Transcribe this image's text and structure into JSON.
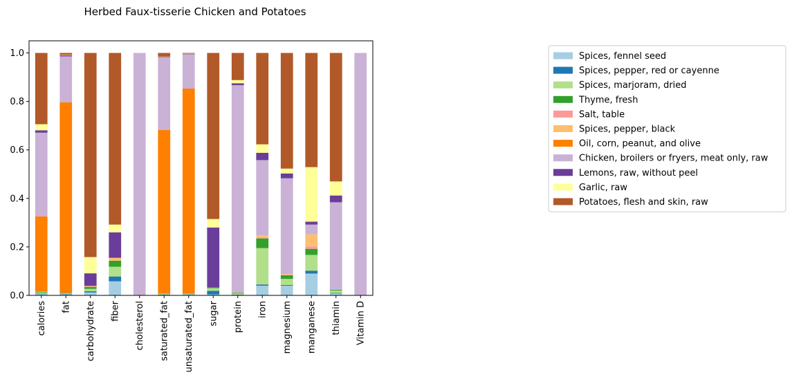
{
  "chart_data": {
    "type": "bar",
    "stacked": true,
    "title": "Herbed Faux-tisserie Chicken and Potatoes",
    "xlabel": "",
    "ylabel": "",
    "ylim": [
      0,
      1.05
    ],
    "yticks": [
      "0.0",
      "0.2",
      "0.4",
      "0.6",
      "0.8",
      "1.0"
    ],
    "grid": false,
    "legend_position": "right",
    "categories": [
      "calories",
      "fat",
      "carbohydrate",
      "fiber",
      "cholesterol",
      "saturated_fat",
      "unsaturated_fat",
      "sugar",
      "protein",
      "iron",
      "magnesium",
      "manganese",
      "thiamin",
      "Vitamin D"
    ],
    "series": [
      {
        "name": "Spices, fennel seed",
        "color": "#a6cee3",
        "values": [
          0.005,
          0.003,
          0.012,
          0.058,
          0,
          0.002,
          0.003,
          0.004,
          0.002,
          0.04,
          0.04,
          0.09,
          0.008,
          0
        ]
      },
      {
        "name": "Spices, pepper, red or cayenne",
        "color": "#1f78b4",
        "values": [
          0.002,
          0.002,
          0.005,
          0.02,
          0,
          0.001,
          0.001,
          0.015,
          0.001,
          0.005,
          0.003,
          0.012,
          0.002,
          0
        ]
      },
      {
        "name": "Spices, marjoram, dried",
        "color": "#b2df8a",
        "values": [
          0.005,
          0.003,
          0.01,
          0.04,
          0,
          0.002,
          0.002,
          0.01,
          0.005,
          0.15,
          0.025,
          0.065,
          0.01,
          0
        ]
      },
      {
        "name": "Thyme, fresh",
        "color": "#33a02c",
        "values": [
          0.003,
          0.002,
          0.008,
          0.025,
          0,
          0.001,
          0.001,
          0.002,
          0.003,
          0.04,
          0.015,
          0.025,
          0.003,
          0
        ]
      },
      {
        "name": "Salt, table",
        "color": "#fb9a99",
        "values": [
          0,
          0,
          0,
          0,
          0,
          0,
          0,
          0,
          0,
          0.003,
          0.002,
          0.01,
          0,
          0
        ]
      },
      {
        "name": "Spices, pepper, black",
        "color": "#fdbf6f",
        "values": [
          0.001,
          0.001,
          0.004,
          0.012,
          0,
          0.001,
          0.001,
          0.001,
          0.001,
          0.01,
          0.003,
          0.05,
          0.001,
          0
        ]
      },
      {
        "name": "Oil, corn, peanut, and olive",
        "color": "#ff7f00",
        "values": [
          0.31,
          0.785,
          0,
          0,
          0,
          0.675,
          0.845,
          0,
          0,
          0,
          0,
          0,
          0,
          0
        ]
      },
      {
        "name": "Chicken, broilers or fryers, meat only, raw",
        "color": "#cab2d6",
        "values": [
          0.345,
          0.19,
          0,
          0,
          1.0,
          0.3,
          0.14,
          0,
          0.855,
          0.31,
          0.395,
          0.04,
          0.36,
          1.0
        ]
      },
      {
        "name": "Lemons, raw, without peel",
        "color": "#6a3d9a",
        "values": [
          0.01,
          0.004,
          0.052,
          0.105,
          0,
          0.002,
          0.002,
          0.248,
          0.008,
          0.03,
          0.02,
          0.012,
          0.028,
          0
        ]
      },
      {
        "name": "Garlic, raw",
        "color": "#ffff99",
        "values": [
          0.025,
          0.002,
          0.067,
          0.032,
          0,
          0.001,
          0.002,
          0.035,
          0.013,
          0.035,
          0.02,
          0.225,
          0.058,
          0
        ]
      },
      {
        "name": "Potatoes, flesh and skin, raw",
        "color": "#b15928",
        "values": [
          0.294,
          0.008,
          0.842,
          0.708,
          0,
          0.015,
          0.003,
          0.685,
          0.112,
          0.377,
          0.477,
          0.471,
          0.53,
          0
        ]
      }
    ]
  }
}
